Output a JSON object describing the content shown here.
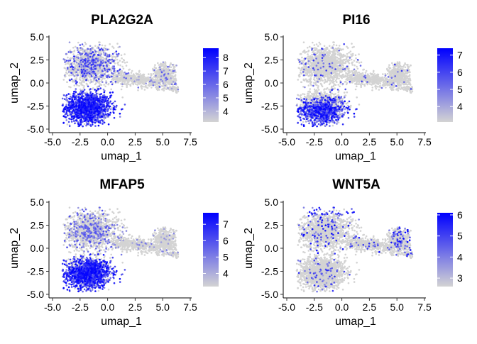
{
  "chart_data": [
    {
      "type": "scatter",
      "title": "PLA2G2A",
      "xlabel": "umap_1",
      "ylabel": "umap_2",
      "xlim": [
        -5.0,
        7.5
      ],
      "ylim": [
        -5.0,
        5.0
      ],
      "x_ticks": [
        "-5.0",
        "-2.5",
        "0.0",
        "2.5",
        "5.0",
        "7.5"
      ],
      "y_ticks": [
        "-5.0",
        "-2.5",
        "0.0",
        "2.5",
        "5.0"
      ],
      "color_scale": {
        "low": "#d3d3d3",
        "high": "#0000ff",
        "range": [
          3.2,
          8.7
        ],
        "ticks": [
          "4",
          "5",
          "6",
          "7",
          "8"
        ]
      },
      "expression_region": "lower-left lobe (strong), scattered in upper lobe",
      "grid": false,
      "legend": "right"
    },
    {
      "type": "scatter",
      "title": "PI16",
      "xlabel": "umap_1",
      "ylabel": "umap_2",
      "xlim": [
        -5.0,
        7.5
      ],
      "ylim": [
        -5.0,
        5.0
      ],
      "x_ticks": [
        "-5.0",
        "-2.5",
        "0.0",
        "2.5",
        "5.0",
        "7.5"
      ],
      "y_ticks": [
        "-5.0",
        "-2.5",
        "0.0",
        "2.5",
        "5.0"
      ],
      "color_scale": {
        "low": "#d3d3d3",
        "high": "#0000ff",
        "range": [
          3.1,
          7.4
        ],
        "ticks": [
          "4",
          "5",
          "6",
          "7"
        ]
      },
      "expression_region": "lower-left lobe, bottom edge",
      "grid": false,
      "legend": "right"
    },
    {
      "type": "scatter",
      "title": "MFAP5",
      "xlabel": "umap_1",
      "ylabel": "umap_2",
      "xlim": [
        -5.0,
        7.5
      ],
      "ylim": [
        -5.0,
        5.0
      ],
      "x_ticks": [
        "-5.0",
        "-2.5",
        "0.0",
        "2.5",
        "5.0",
        "7.5"
      ],
      "y_ticks": [
        "-5.0",
        "-2.5",
        "0.0",
        "2.5",
        "5.0"
      ],
      "color_scale": {
        "low": "#d3d3d3",
        "high": "#0000ff",
        "range": [
          3.2,
          7.7
        ],
        "ticks": [
          "4",
          "5",
          "6",
          "7"
        ]
      },
      "expression_region": "lower-left lobe (broad)",
      "grid": false,
      "legend": "right"
    },
    {
      "type": "scatter",
      "title": "WNT5A",
      "xlabel": "umap_1",
      "ylabel": "umap_2",
      "xlim": [
        -5.0,
        7.5
      ],
      "ylim": [
        -5.0,
        5.0
      ],
      "x_ticks": [
        "-5.0",
        "-2.5",
        "0.0",
        "2.5",
        "5.0",
        "7.5"
      ],
      "y_ticks": [
        "-5.0",
        "-2.5",
        "0.0",
        "2.5",
        "5.0"
      ],
      "color_scale": {
        "low": "#d3d3d3",
        "high": "#0000ff",
        "range": [
          2.6,
          6.1
        ],
        "ticks": [
          "3",
          "4",
          "5",
          "6"
        ]
      },
      "expression_region": "sparse, upper lobe top edge and right cluster",
      "grid": false,
      "legend": "right"
    }
  ]
}
